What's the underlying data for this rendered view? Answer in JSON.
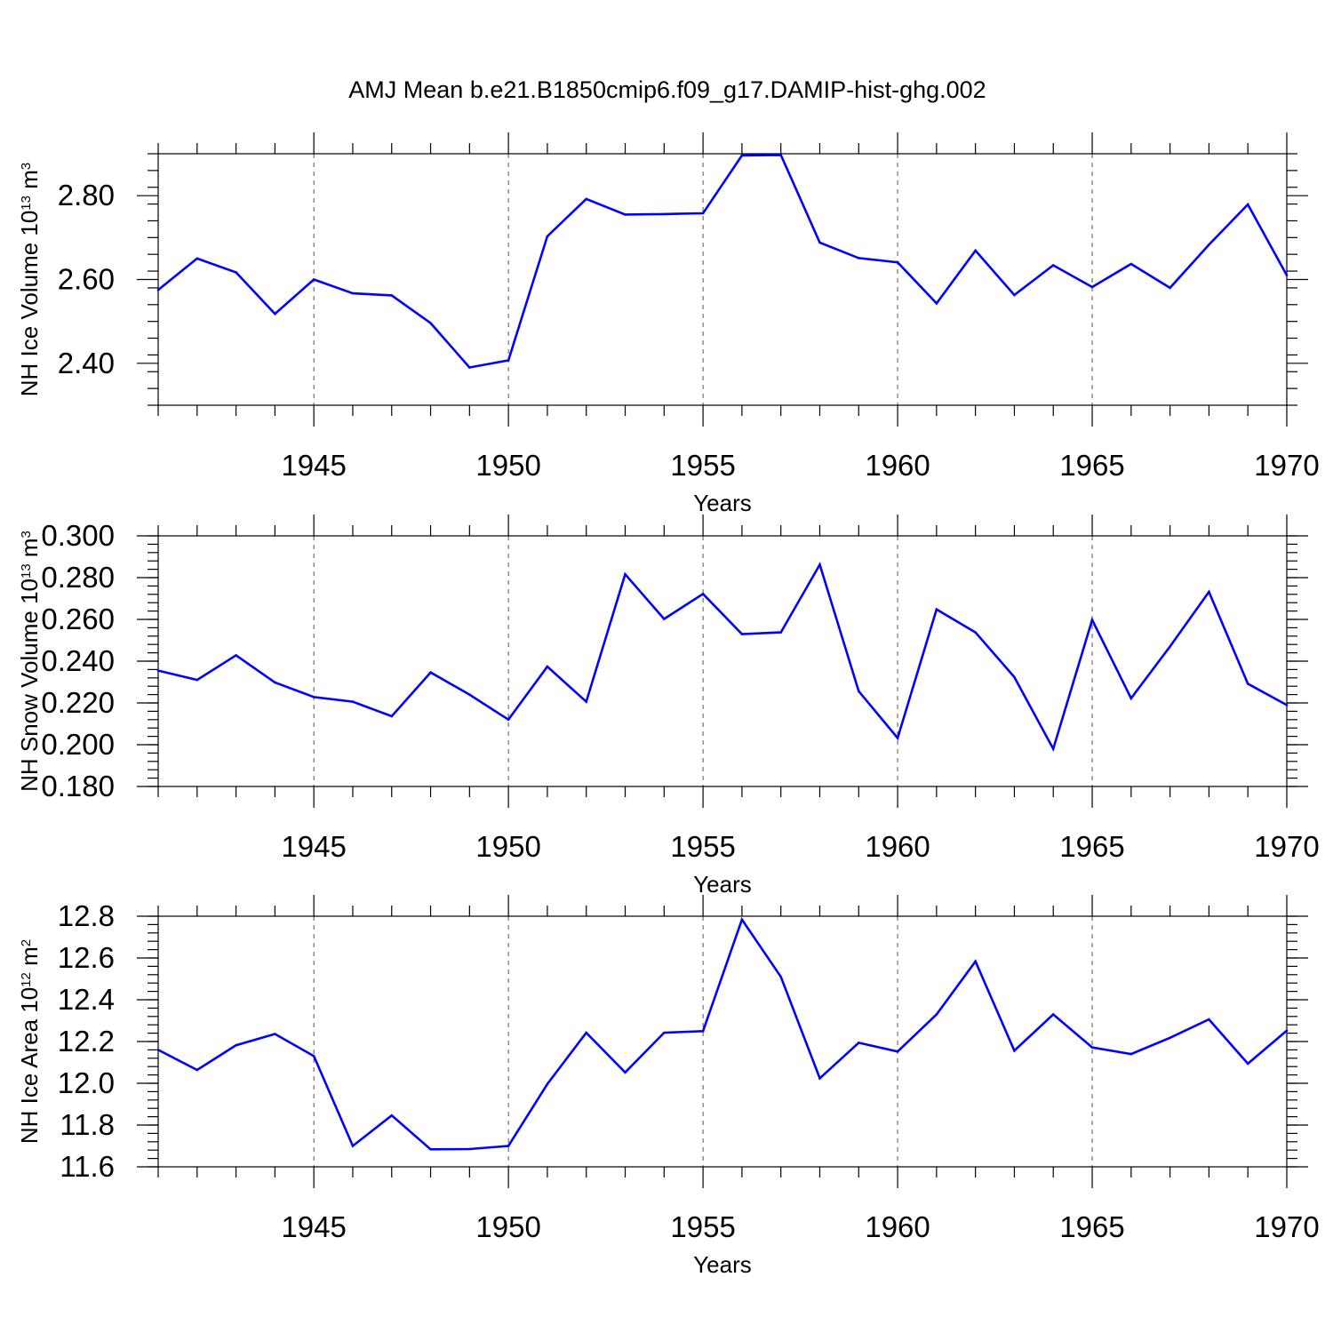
{
  "title": "AMJ Mean b.e21.B1850cmip6.f09_g17.DAMIP-hist-ghg.002",
  "colors": {
    "series": "#0000ff",
    "axis": "#000000",
    "grid": "#555555"
  },
  "chart_data": [
    {
      "type": "line",
      "xlabel": "Years",
      "ylabel": {
        "prefix": "NH Ice Volume 10",
        "exp": "13",
        "unit": " m",
        "unit_exp": "3"
      },
      "x": [
        1941,
        1942,
        1943,
        1944,
        1945,
        1946,
        1947,
        1948,
        1949,
        1950,
        1951,
        1952,
        1953,
        1954,
        1955,
        1956,
        1957,
        1958,
        1959,
        1960,
        1961,
        1962,
        1963,
        1964,
        1965,
        1966,
        1967,
        1968,
        1969,
        1970
      ],
      "series": [
        {
          "values": [
            2.575,
            2.65,
            2.617,
            2.518,
            2.6,
            2.567,
            2.562,
            2.496,
            2.39,
            2.407,
            2.703,
            2.792,
            2.755,
            2.756,
            2.758,
            2.896,
            2.897,
            2.688,
            2.651,
            2.641,
            2.543,
            2.669,
            2.563,
            2.634,
            2.582,
            2.637,
            2.58,
            2.683,
            2.779,
            2.61
          ]
        }
      ],
      "xlim": [
        1941,
        1970
      ],
      "ylim": [
        2.3,
        2.9
      ],
      "xticks": [
        1945,
        1950,
        1955,
        1960,
        1965,
        1970
      ],
      "xtick_labels": [
        "1945",
        "1950",
        "1955",
        "1960",
        "1965",
        "1970"
      ],
      "yticks": [
        2.4,
        2.6,
        2.8
      ],
      "ytick_labels": [
        "2.40",
        "2.60",
        "2.80"
      ],
      "grid": "vertical dashed at major x ticks"
    },
    {
      "type": "line",
      "xlabel": "Years",
      "ylabel": {
        "prefix": "NH Snow Volume 10",
        "exp": "13",
        "unit": " m",
        "unit_exp": "3"
      },
      "x": [
        1941,
        1942,
        1943,
        1944,
        1945,
        1946,
        1947,
        1948,
        1949,
        1950,
        1951,
        1952,
        1953,
        1954,
        1955,
        1956,
        1957,
        1958,
        1959,
        1960,
        1961,
        1962,
        1963,
        1964,
        1965,
        1966,
        1967,
        1968,
        1969,
        1970
      ],
      "series": [
        {
          "values": [
            0.2355,
            0.231,
            0.2428,
            0.2298,
            0.2228,
            0.2206,
            0.2136,
            0.2346,
            0.224,
            0.212,
            0.2374,
            0.2206,
            0.2816,
            0.2602,
            0.2722,
            0.253,
            0.2538,
            0.2862,
            0.2256,
            0.2032,
            0.2648,
            0.2538,
            0.2324,
            0.198,
            0.2598,
            0.2222,
            0.247,
            0.2732,
            0.2292,
            0.219
          ]
        }
      ],
      "xlim": [
        1941,
        1970
      ],
      "ylim": [
        0.18,
        0.3
      ],
      "xticks": [
        1945,
        1950,
        1955,
        1960,
        1965,
        1970
      ],
      "xtick_labels": [
        "1945",
        "1950",
        "1955",
        "1960",
        "1965",
        "1970"
      ],
      "yticks": [
        0.18,
        0.2,
        0.22,
        0.24,
        0.26,
        0.28,
        0.3
      ],
      "ytick_labels": [
        "0.180",
        "0.200",
        "0.220",
        "0.240",
        "0.260",
        "0.280",
        "0.300"
      ],
      "grid": "vertical dashed at major x ticks"
    },
    {
      "type": "line",
      "xlabel": "Years",
      "ylabel": {
        "prefix": "NH Ice Area 10",
        "exp": "12",
        "unit": " m",
        "unit_exp": "2"
      },
      "x": [
        1941,
        1942,
        1943,
        1944,
        1945,
        1946,
        1947,
        1948,
        1949,
        1950,
        1951,
        1952,
        1953,
        1954,
        1955,
        1956,
        1957,
        1958,
        1959,
        1960,
        1961,
        1962,
        1963,
        1964,
        1965,
        1966,
        1967,
        1968,
        1969,
        1970
      ],
      "series": [
        {
          "values": [
            12.16,
            12.064,
            12.182,
            12.236,
            12.13,
            11.7,
            11.846,
            11.684,
            11.685,
            11.7,
            11.996,
            12.242,
            12.052,
            12.242,
            12.25,
            12.784,
            12.51,
            12.024,
            12.194,
            12.152,
            12.33,
            12.584,
            12.156,
            12.33,
            12.172,
            12.14,
            12.218,
            12.306,
            12.094,
            12.252
          ]
        }
      ],
      "xlim": [
        1941,
        1970
      ],
      "ylim": [
        11.6,
        12.8
      ],
      "xticks": [
        1945,
        1950,
        1955,
        1960,
        1965,
        1970
      ],
      "xtick_labels": [
        "1945",
        "1950",
        "1955",
        "1960",
        "1965",
        "1970"
      ],
      "yticks": [
        11.6,
        11.8,
        12.0,
        12.2,
        12.4,
        12.6,
        12.8
      ],
      "ytick_labels": [
        "11.6",
        "11.8",
        "12.0",
        "12.2",
        "12.4",
        "12.6",
        "12.8"
      ],
      "grid": "vertical dashed at major x ticks"
    }
  ]
}
